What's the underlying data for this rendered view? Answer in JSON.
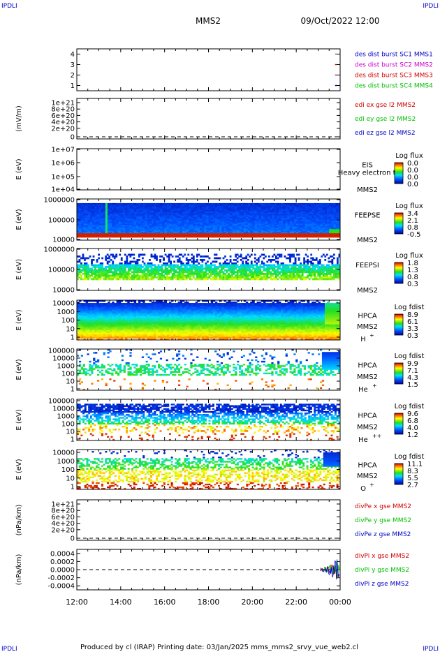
{
  "header": {
    "corner_left_top": "IPDLI",
    "corner_right_top": "IPDLI",
    "spacecraft": "MMS2",
    "datetime": "09/Oct/2022 12:00"
  },
  "footer": {
    "text": "Produced by cl (IRAP)    Printing date: 03/Jan/2025    mms_mms2_srvy_vue_web2.cl",
    "corner_left_bottom": "IPDLI",
    "corner_right_bottom": "IPDLI"
  },
  "colors": {
    "blue": "#0000c8",
    "magenta": "#d000d0",
    "red": "#d00000",
    "green": "#00c000"
  },
  "chart_data": [
    {
      "type": "scatter",
      "panel": "burst",
      "ylim": [
        0.5,
        4.5
      ],
      "yticks": [
        "4",
        "3",
        "2",
        "1"
      ],
      "legend": [
        {
          "label": "des dist burst SC1 MMS1",
          "color": "#0000c8"
        },
        {
          "label": "des dist burst SC2 MMS2",
          "color": "#d000d0"
        },
        {
          "label": "des dist burst SC3 MMS3",
          "color": "#d00000"
        },
        {
          "label": "des dist burst SC4 MMS4",
          "color": "#00c000"
        }
      ],
      "marks": [
        {
          "x_hour": 23.8,
          "sc": 4,
          "color": "#00c000"
        },
        {
          "x_hour": 23.8,
          "sc": 3,
          "color": "#d00000"
        },
        {
          "x_hour": 23.8,
          "sc": 2,
          "color": "#d000d0"
        },
        {
          "x_hour": 23.8,
          "sc": 1,
          "color": "#0000c8"
        }
      ]
    },
    {
      "type": "line",
      "panel": "edi",
      "ylabel": "(mV/m)",
      "yticks": [
        "1e+21",
        "8e+20",
        "6e+20",
        "4e+20",
        "2e+20",
        "0"
      ],
      "legend": [
        {
          "label": "edi ex gse l2 MMS2",
          "color": "#d00000"
        },
        {
          "label": "edi ey gse l2 MMS2",
          "color": "#00c000"
        },
        {
          "label": "edi ez gse l2 MMS2",
          "color": "#0000c8"
        }
      ]
    },
    {
      "type": "heatmap",
      "panel": "eis",
      "ylabel": "E (eV)",
      "yticks": [
        "1e+07",
        "1e+06",
        "1e+05",
        "1e+04"
      ],
      "instrument": "EIS",
      "subtitle": "Heavy electron tof",
      "sc": "MMS2",
      "colorbar_title": "Log flux",
      "colorbar_ticks": [
        "0.0",
        "0.0",
        "0.0",
        "0.0"
      ]
    },
    {
      "type": "heatmap",
      "panel": "feepse",
      "ylabel": "E (eV)",
      "yticks": [
        "1000000",
        "100000",
        "10000"
      ],
      "instrument": "FEEPSE",
      "sc": "MMS2",
      "colorbar_title": "Log flux",
      "colorbar_ticks": [
        "3.4",
        "2.1",
        "0.8",
        "-0.5"
      ]
    },
    {
      "type": "heatmap",
      "panel": "feepsi",
      "ylabel": "E (eV)",
      "yticks": [
        "1000000",
        "100000",
        "10000"
      ],
      "instrument": "FEEPSI",
      "sc": "MMS2",
      "colorbar_title": "Log flux",
      "colorbar_ticks": [
        "1.8",
        "1.3",
        "0.8",
        "0.3"
      ]
    },
    {
      "type": "heatmap",
      "panel": "hpca_h",
      "ylabel": "E (eV)",
      "yticks": [
        "10000",
        "1000",
        "100",
        "10",
        "1"
      ],
      "instrument": "HPCA",
      "sc": "MMS2",
      "species": "H",
      "species_charge": "+",
      "colorbar_title": "Log fdist",
      "colorbar_ticks": [
        "8.9",
        "6.1",
        "3.3",
        "0.3"
      ]
    },
    {
      "type": "heatmap",
      "panel": "hpca_he1",
      "ylabel": "E (eV)",
      "yticks": [
        "100000",
        "10000",
        "1000",
        "100",
        "10",
        "1"
      ],
      "instrument": "HPCA",
      "sc": "MMS2",
      "species": "He",
      "species_charge": "+",
      "colorbar_title": "Log fdist",
      "colorbar_ticks": [
        "9.9",
        "7.1",
        "4.3",
        "1.5"
      ]
    },
    {
      "type": "heatmap",
      "panel": "hpca_he2",
      "ylabel": "E (eV)",
      "yticks": [
        "100000",
        "10000",
        "1000",
        "100",
        "10",
        "1"
      ],
      "instrument": "HPCA",
      "sc": "MMS2",
      "species": "He",
      "species_charge": "++",
      "colorbar_title": "Log fdist",
      "colorbar_ticks": [
        "9.6",
        "6.8",
        "4.0",
        "1.2"
      ]
    },
    {
      "type": "heatmap",
      "panel": "hpca_o",
      "ylabel": "E (eV)",
      "yticks": [
        "10000",
        "1000",
        "100",
        "10",
        "1"
      ],
      "instrument": "HPCA",
      "sc": "MMS2",
      "species": "O",
      "species_charge": "+",
      "colorbar_title": "Log fdist",
      "colorbar_ticks": [
        "11.1",
        "8.3",
        "5.5",
        "2.7"
      ]
    },
    {
      "type": "line",
      "panel": "divpe",
      "ylabel": "(nPa/km)",
      "yticks": [
        "1e+21",
        "8e+20",
        "6e+20",
        "4e+20",
        "2e+20",
        "0"
      ],
      "legend": [
        {
          "label": "divPe x gse MMS2",
          "color": "#d00000"
        },
        {
          "label": "divPe y gse MMS2",
          "color": "#00c000"
        },
        {
          "label": "divPe z gse MMS2",
          "color": "#0000c8"
        }
      ]
    },
    {
      "type": "line",
      "panel": "divpi",
      "ylabel": "(nPa/km)",
      "yticks": [
        "0.0004",
        "0.0002",
        "0.0000",
        "-0.0002",
        "-0.0004"
      ],
      "ylim": [
        -0.0005,
        0.0005
      ],
      "legend": [
        {
          "label": "divPi x gse MMS2",
          "color": "#d00000"
        },
        {
          "label": "divPi y gse MMS2",
          "color": "#00c000"
        },
        {
          "label": "divPi z gse MMS2",
          "color": "#0000c8"
        }
      ]
    }
  ],
  "xaxis": {
    "xlim_hours": [
      12,
      24
    ],
    "ticks": [
      "12:00",
      "14:00",
      "16:00",
      "18:00",
      "20:00",
      "22:00",
      "00:00"
    ]
  }
}
